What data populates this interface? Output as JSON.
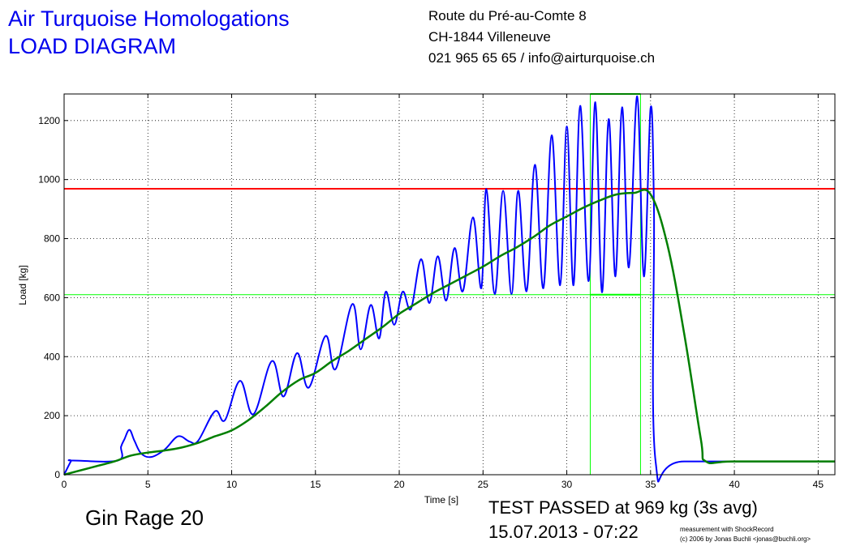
{
  "header": {
    "title_line1": "Air Turquoise Homologations",
    "title_line2": "LOAD DIAGRAM",
    "address_line1": "Route du Pré-au-Comte 8",
    "address_line2": "CH-1844 Villeneuve",
    "address_line3": "021 965 65 65 / info@airturquoise.ch"
  },
  "footer": {
    "specimen": "Gin Rage 20",
    "result": "TEST PASSED at 969 kg (3s avg)",
    "datetime": "15.07.2013 - 07:22",
    "credit_line1": "measurement with ShockRecord",
    "credit_line2": "(c) 2006 by Jonas Buchli <jonas@buchli.org>"
  },
  "colors": {
    "raw_load": "#0000ff",
    "avg_load": "#007f00",
    "max_line": "#ff0000",
    "window": "#00ff00"
  },
  "chart_data": {
    "type": "line",
    "xlabel": "Time [s]",
    "ylabel": "Load [kg]",
    "xlim": [
      0,
      46
    ],
    "ylim": [
      0,
      1290
    ],
    "xticks": [
      0,
      5,
      10,
      15,
      20,
      25,
      30,
      35,
      40,
      45
    ],
    "yticks": [
      0,
      200,
      400,
      600,
      800,
      1000,
      1200
    ],
    "grid": true,
    "reference_lines": {
      "max_avg_load": 969,
      "lower_threshold": 610
    },
    "averaging_window": {
      "start_s": 31.4,
      "end_s": 34.4,
      "top": 1290,
      "bottom": 610
    },
    "avg_series": [
      [
        0,
        0
      ],
      [
        1,
        15
      ],
      [
        2,
        30
      ],
      [
        3,
        45
      ],
      [
        4,
        65
      ],
      [
        5,
        75
      ],
      [
        6,
        82
      ],
      [
        7,
        92
      ],
      [
        8,
        108
      ],
      [
        9,
        130
      ],
      [
        10,
        150
      ],
      [
        11,
        185
      ],
      [
        12,
        230
      ],
      [
        13,
        280
      ],
      [
        14,
        320
      ],
      [
        15,
        345
      ],
      [
        16,
        385
      ],
      [
        17,
        420
      ],
      [
        18,
        460
      ],
      [
        19,
        500
      ],
      [
        20,
        545
      ],
      [
        21,
        580
      ],
      [
        22,
        615
      ],
      [
        23,
        645
      ],
      [
        24,
        675
      ],
      [
        25,
        705
      ],
      [
        26,
        740
      ],
      [
        27,
        770
      ],
      [
        28,
        805
      ],
      [
        29,
        845
      ],
      [
        30,
        875
      ],
      [
        31,
        905
      ],
      [
        32,
        930
      ],
      [
        33,
        950
      ],
      [
        34,
        955
      ],
      [
        35,
        950
      ],
      [
        36,
        780
      ],
      [
        37,
        480
      ],
      [
        38,
        120
      ],
      [
        38.3,
        45
      ],
      [
        40,
        45
      ],
      [
        46,
        45
      ]
    ],
    "raw_series": [
      [
        0,
        0
      ],
      [
        0.4,
        45
      ],
      [
        0.5,
        48
      ],
      [
        3.2,
        48
      ],
      [
        3.4,
        95
      ],
      [
        3.6,
        120
      ],
      [
        3.9,
        152
      ],
      [
        4.2,
        115
      ],
      [
        4.6,
        72
      ],
      [
        5.2,
        60
      ],
      [
        6,
        85
      ],
      [
        6.8,
        130
      ],
      [
        7.5,
        112
      ],
      [
        8,
        115
      ],
      [
        9,
        215
      ],
      [
        9.6,
        185
      ],
      [
        10.5,
        318
      ],
      [
        11.3,
        205
      ],
      [
        12.4,
        385
      ],
      [
        13.1,
        265
      ],
      [
        13.9,
        412
      ],
      [
        14.6,
        295
      ],
      [
        15.6,
        470
      ],
      [
        16.2,
        358
      ],
      [
        17.2,
        578
      ],
      [
        17.7,
        425
      ],
      [
        18.3,
        575
      ],
      [
        18.8,
        462
      ],
      [
        19.2,
        620
      ],
      [
        19.7,
        508
      ],
      [
        20.2,
        620
      ],
      [
        20.7,
        562
      ],
      [
        21.3,
        730
      ],
      [
        21.8,
        582
      ],
      [
        22.3,
        740
      ],
      [
        22.8,
        590
      ],
      [
        23.3,
        768
      ],
      [
        23.8,
        622
      ],
      [
        24.4,
        872
      ],
      [
        24.9,
        632
      ],
      [
        25.2,
        968
      ],
      [
        25.7,
        612
      ],
      [
        26.2,
        962
      ],
      [
        26.7,
        612
      ],
      [
        27.1,
        962
      ],
      [
        27.6,
        622
      ],
      [
        28.1,
        1050
      ],
      [
        28.6,
        632
      ],
      [
        29.1,
        1150
      ],
      [
        29.6,
        642
      ],
      [
        30,
        1180
      ],
      [
        30.4,
        642
      ],
      [
        30.8,
        1250
      ],
      [
        31.3,
        656
      ],
      [
        31.7,
        1262
      ],
      [
        32.1,
        618
      ],
      [
        32.5,
        1205
      ],
      [
        32.9,
        672
      ],
      [
        33.3,
        1245
      ],
      [
        33.7,
        702
      ],
      [
        34.2,
        1282
      ],
      [
        34.6,
        672
      ],
      [
        35,
        1242
      ],
      [
        35.2,
        900
      ],
      [
        35.3,
        45
      ],
      [
        37,
        45
      ],
      [
        46,
        45
      ]
    ]
  }
}
